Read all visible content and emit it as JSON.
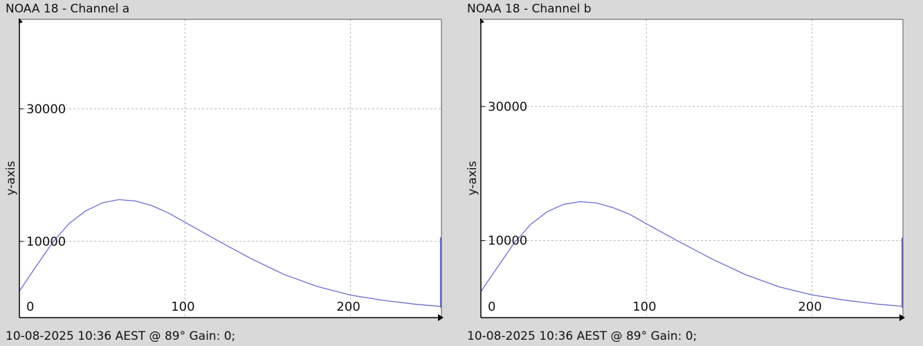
{
  "chart_data": [
    {
      "type": "line",
      "title": "NOAA 18 - Channel a",
      "footer": "10-08-2025 10:36 AEST @ 89° Gain: 0;",
      "xlabel": "",
      "ylabel": "y-axis",
      "x_ticks": [
        0,
        100,
        200
      ],
      "y_ticks": [
        10000,
        30000
      ],
      "xlim": [
        0,
        255
      ],
      "ylim": [
        -1500,
        43500
      ],
      "grid": true,
      "line_color": "#6a6ad2",
      "series": [
        {
          "x": [
            0,
            10,
            20,
            30,
            40,
            50,
            60,
            70,
            80,
            90,
            100,
            120,
            140,
            160,
            180,
            200,
            220,
            240,
            254
          ],
          "y": [
            2500,
            6200,
            9800,
            12700,
            14600,
            15800,
            16300,
            16100,
            15400,
            14300,
            12900,
            10100,
            7400,
            5000,
            3200,
            1900,
            1100,
            500,
            200
          ]
        }
      ],
      "end_spike": {
        "x": 255,
        "y_from": 0,
        "y_to": 10600
      }
    },
    {
      "type": "line",
      "title": "NOAA 18 - Channel b",
      "footer": "10-08-2025 10:36 AEST @ 89° Gain: 0;",
      "xlabel": "",
      "ylabel": "y-axis",
      "x_ticks": [
        0,
        100,
        200
      ],
      "y_ticks": [
        10000,
        30000
      ],
      "xlim": [
        0,
        255
      ],
      "ylim": [
        -1500,
        43000
      ],
      "grid": true,
      "line_color": "#6a6ad2",
      "series": [
        {
          "x": [
            0,
            10,
            20,
            30,
            40,
            50,
            60,
            70,
            80,
            90,
            100,
            120,
            140,
            160,
            180,
            200,
            220,
            240,
            254
          ],
          "y": [
            2400,
            6000,
            9600,
            12400,
            14300,
            15400,
            15800,
            15600,
            14900,
            13900,
            12500,
            9800,
            7200,
            4900,
            3100,
            1900,
            1100,
            500,
            200
          ]
        }
      ],
      "end_spike": {
        "x": 255,
        "y_from": 0,
        "y_to": 10400
      }
    }
  ]
}
